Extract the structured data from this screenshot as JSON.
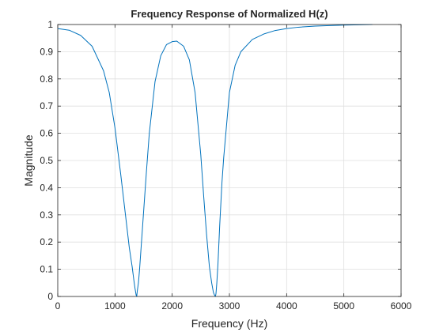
{
  "chart_data": {
    "type": "line",
    "title": "Frequency Response of Normalized H(z)",
    "xlabel": "Frequency (Hz)",
    "ylabel": "Magnitude",
    "xlim": [
      0,
      6000
    ],
    "ylim": [
      0,
      1
    ],
    "x_ticks": [
      "0",
      "1000",
      "2000",
      "3000",
      "4000",
      "5000",
      "6000"
    ],
    "y_ticks": [
      "0",
      "0.1",
      "0.2",
      "0.3",
      "0.4",
      "0.5",
      "0.6",
      "0.7",
      "0.8",
      "0.9",
      "1"
    ],
    "grid": true,
    "line_color": "#0072BD",
    "series": [
      {
        "x": [
          0,
          200,
          400,
          600,
          800,
          900,
          1000,
          1100,
          1200,
          1250,
          1300,
          1330,
          1350,
          1370,
          1380,
          1390,
          1410,
          1430,
          1460,
          1500,
          1550,
          1600,
          1700,
          1800,
          1900,
          2000,
          2080,
          2200,
          2300,
          2400,
          2500,
          2550,
          2600,
          2650,
          2690,
          2720,
          2740,
          2755,
          2765,
          2780,
          2800,
          2830,
          2870,
          2900,
          3000,
          3100,
          3200,
          3400,
          3600,
          3800,
          4000,
          4200,
          4500,
          5000,
          5500
        ],
        "y": [
          0.985,
          0.979,
          0.96,
          0.92,
          0.83,
          0.75,
          0.62,
          0.45,
          0.27,
          0.18,
          0.11,
          0.06,
          0.03,
          0.005,
          0.0,
          0.02,
          0.05,
          0.1,
          0.19,
          0.31,
          0.46,
          0.6,
          0.79,
          0.885,
          0.926,
          0.937,
          0.939,
          0.92,
          0.87,
          0.75,
          0.52,
          0.37,
          0.23,
          0.11,
          0.05,
          0.015,
          0.005,
          0.0,
          0.01,
          0.05,
          0.12,
          0.26,
          0.42,
          0.51,
          0.75,
          0.85,
          0.9,
          0.945,
          0.965,
          0.978,
          0.985,
          0.99,
          0.994,
          0.998,
          1.0
        ]
      }
    ]
  }
}
